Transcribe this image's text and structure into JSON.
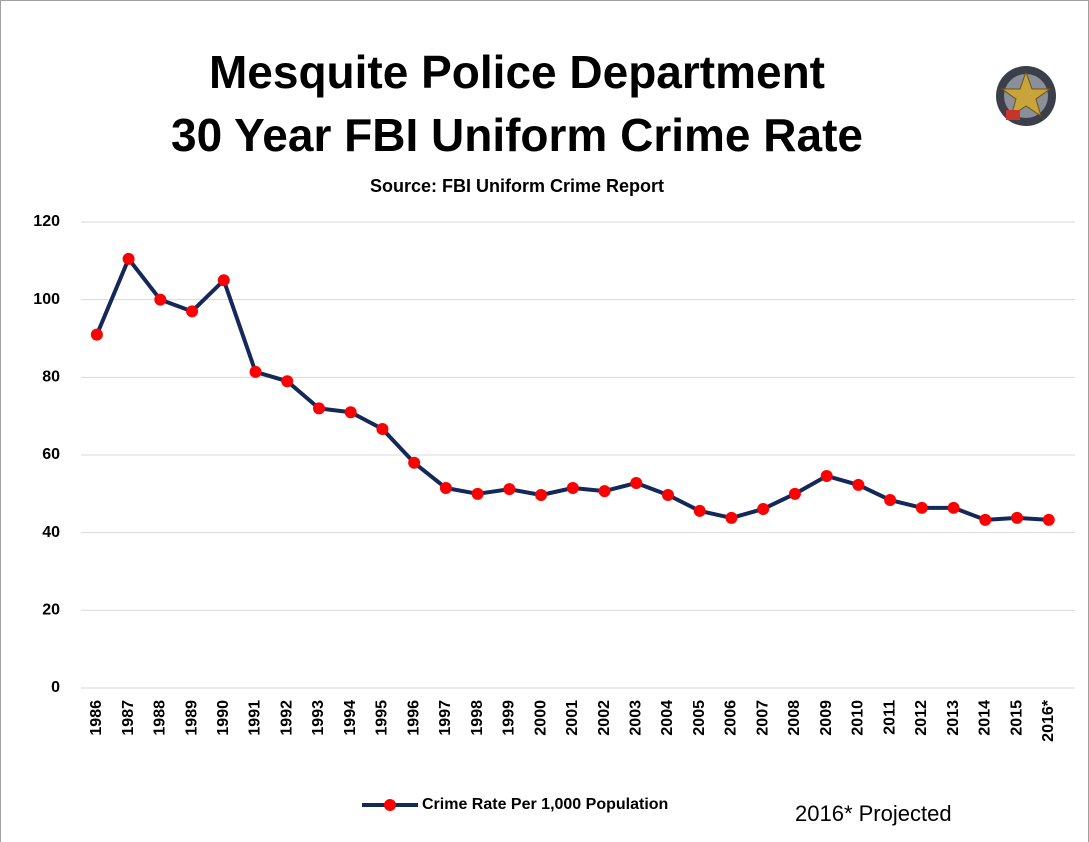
{
  "chart_data": {
    "type": "line",
    "title": [
      "Mesquite Police Department",
      "30 Year FBI Uniform Crime Rate"
    ],
    "subtitle": "Source: FBI Uniform Crime Report",
    "categories": [
      "1986",
      "1987",
      "1988",
      "1989",
      "1990",
      "1991",
      "1992",
      "1993",
      "1994",
      "1995",
      "1996",
      "1997",
      "1998",
      "1999",
      "2000",
      "2001",
      "2002",
      "2003",
      "2004",
      "2005",
      "2006",
      "2007",
      "2008",
      "2009",
      "2010",
      "2011",
      "2012",
      "2013",
      "2014",
      "2015",
      "2016*"
    ],
    "series": [
      {
        "name": "Crime Rate Per 1,000 Population",
        "color": "#14285a",
        "marker_color": "#ff0000",
        "values": [
          91,
          110.5,
          100,
          97,
          105,
          81.4,
          79,
          72,
          71,
          66.7,
          58,
          51.5,
          50,
          51.2,
          49.7,
          51.5,
          50.7,
          52.8,
          49.7,
          45.6,
          43.8,
          46.1,
          50,
          54.6,
          52.3,
          48.4,
          46.4,
          46.4,
          43.3,
          43.8,
          43.3
        ]
      }
    ],
    "ylim": [
      0,
      120
    ],
    "yticks": [
      0,
      20,
      40,
      60,
      80,
      100,
      120
    ],
    "grid": true,
    "legend": "bottom",
    "annotations": [
      "2016* Projected"
    ]
  }
}
